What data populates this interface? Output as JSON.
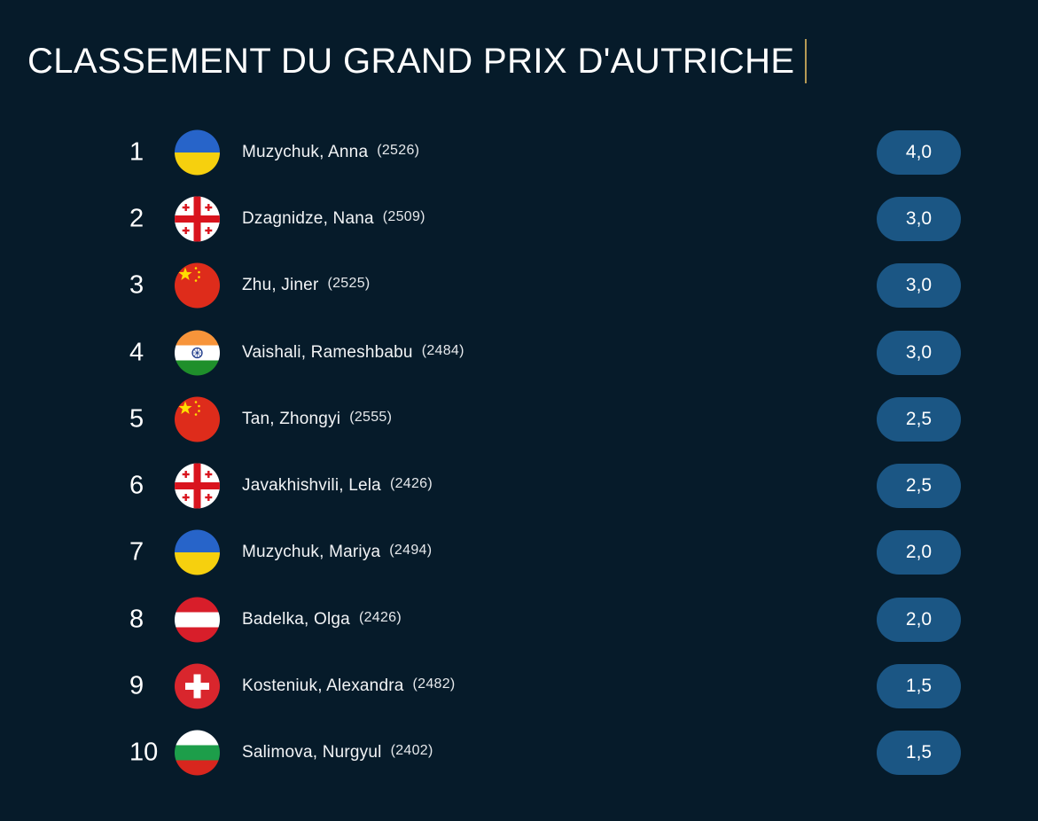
{
  "page": {
    "title": "CLASSEMENT DU GRAND PRIX D'AUTRICHE"
  },
  "colors": {
    "background": "#061b2a",
    "score_pill": "#1b5684",
    "cursor": "#b59a55"
  },
  "standings": [
    {
      "rank": "1",
      "name": "Muzychuk, Anna",
      "rating": "(2526)",
      "score": "4,0",
      "flag_icon": "ukraine-flag-icon"
    },
    {
      "rank": "2",
      "name": "Dzagnidze, Nana",
      "rating": "(2509)",
      "score": "3,0",
      "flag_icon": "georgia-flag-icon"
    },
    {
      "rank": "3",
      "name": "Zhu, Jiner",
      "rating": "(2525)",
      "score": "3,0",
      "flag_icon": "china-flag-icon"
    },
    {
      "rank": "4",
      "name": "Vaishali, Rameshbabu",
      "rating": "(2484)",
      "score": "3,0",
      "flag_icon": "india-flag-icon"
    },
    {
      "rank": "5",
      "name": "Tan, Zhongyi",
      "rating": "(2555)",
      "score": "2,5",
      "flag_icon": "china-flag-icon"
    },
    {
      "rank": "6",
      "name": "Javakhishvili, Lela",
      "rating": "(2426)",
      "score": "2,5",
      "flag_icon": "georgia-flag-icon"
    },
    {
      "rank": "7",
      "name": "Muzychuk, Mariya",
      "rating": "(2494)",
      "score": "2,0",
      "flag_icon": "ukraine-flag-icon"
    },
    {
      "rank": "8",
      "name": "Badelka, Olga",
      "rating": "(2426)",
      "score": "2,0",
      "flag_icon": "austria-flag-icon"
    },
    {
      "rank": "9",
      "name": "Kosteniuk, Alexandra",
      "rating": "(2482)",
      "score": "1,5",
      "flag_icon": "switzerland-flag-icon"
    },
    {
      "rank": "10",
      "name": "Salimova, Nurgyul",
      "rating": "(2402)",
      "score": "1,5",
      "flag_icon": "bulgaria-flag-icon"
    }
  ]
}
